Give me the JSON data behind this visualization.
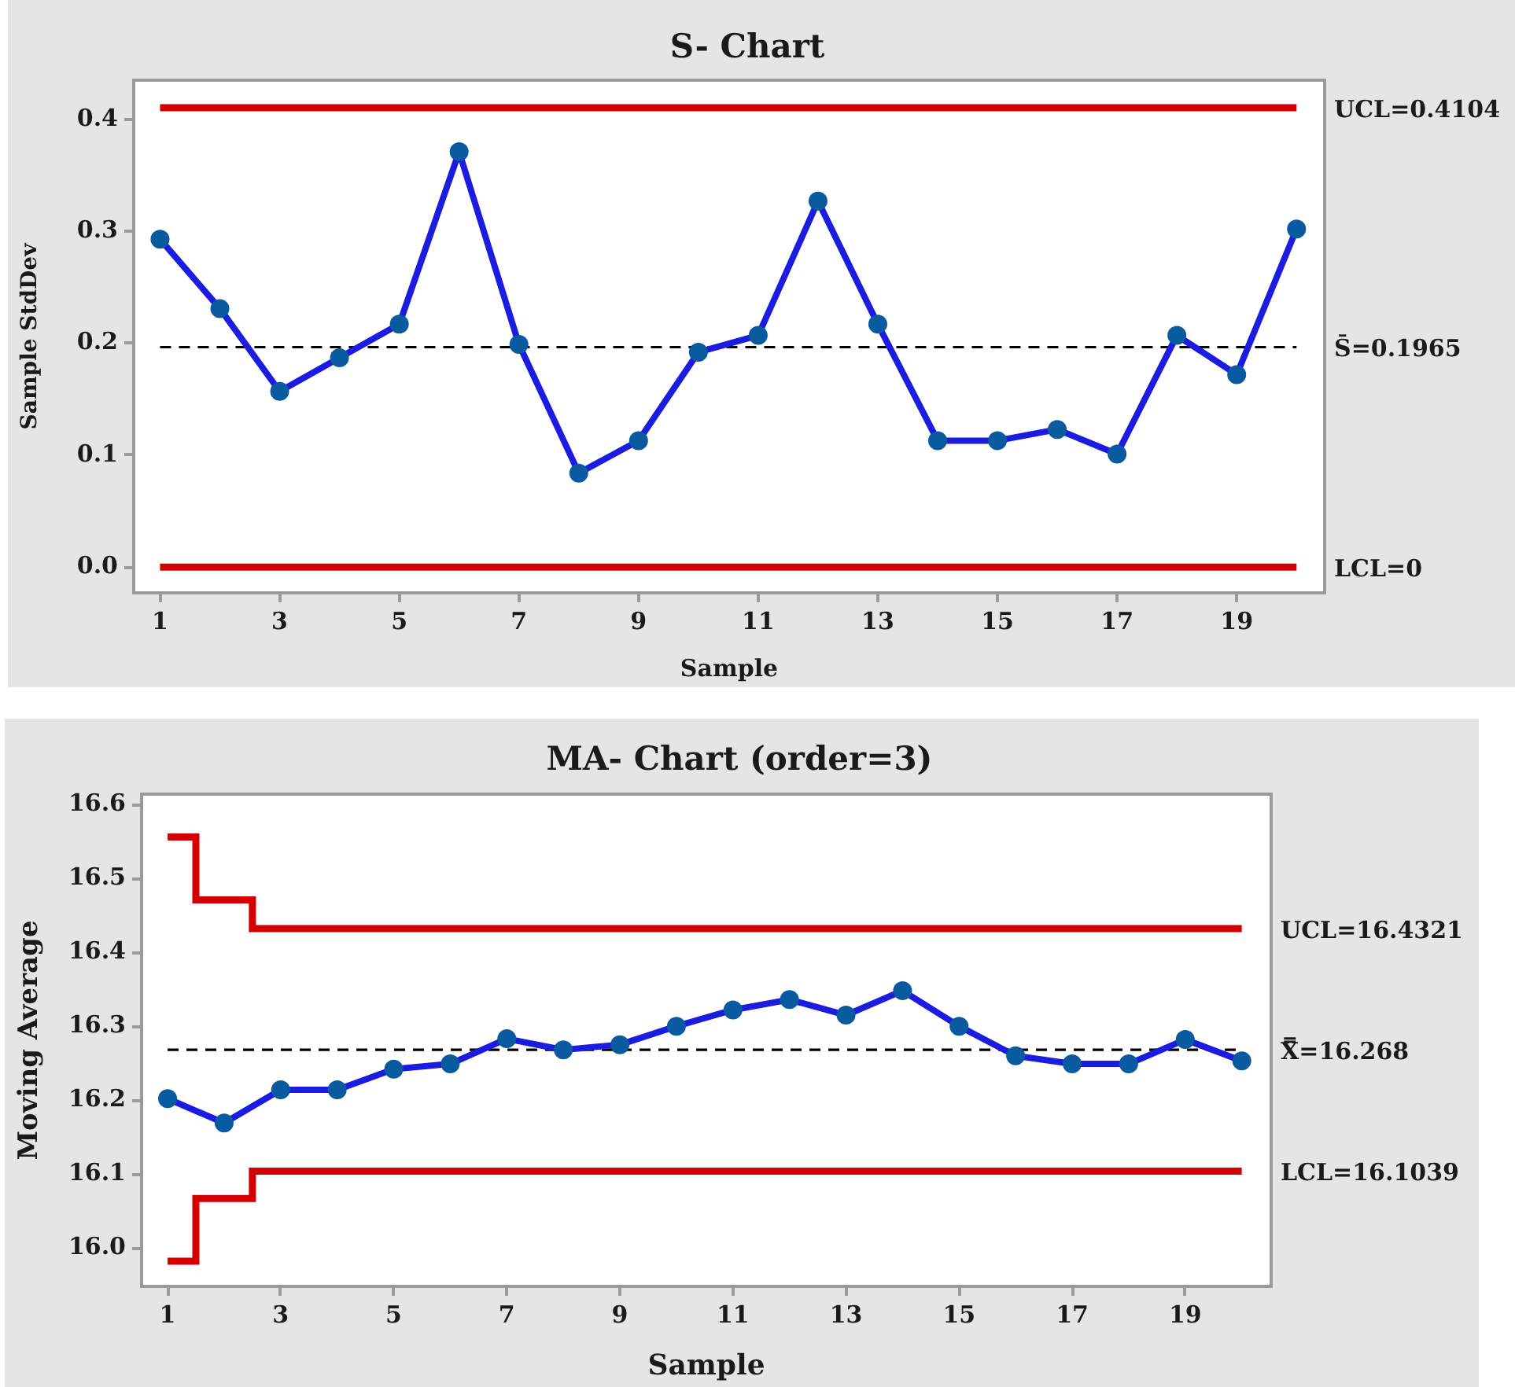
{
  "chart_data": [
    {
      "type": "line",
      "title": "S- Chart",
      "xlabel": "Sample",
      "ylabel": "Sample StdDev",
      "x": [
        1,
        2,
        3,
        4,
        5,
        6,
        7,
        8,
        9,
        10,
        11,
        12,
        13,
        14,
        15,
        16,
        17,
        18,
        19,
        20
      ],
      "marker": "circle",
      "series": [
        {
          "color": "#1c1ce0",
          "colors": [
            "#0a5aa0",
            "#0a5aa0",
            "#0a5aa0",
            "#0a5aa0",
            "#0a5aa0",
            "#0a5aa0",
            "#0a5aa0",
            "#0a5aa0",
            "#0a5aa0",
            "#0a5aa0",
            "#0a5aa0",
            "#0a5aa0",
            "#0a5aa0",
            "#0a5aa0",
            "#0a5aa0",
            "#0a5aa0",
            "#0a5aa0",
            "#0a5aa0",
            "#0a5aa0",
            "#0a5aa0"
          ],
          "values": [
            0.293,
            0.231,
            0.157,
            0.187,
            0.217,
            0.371,
            0.199,
            0.084,
            0.113,
            0.192,
            0.207,
            0.327,
            0.217,
            0.113,
            0.113,
            0.123,
            0.101,
            0.207,
            0.172,
            0.302
          ]
        }
      ],
      "xlim": [
        0.56,
        20.47
      ],
      "xticks": [
        1,
        3,
        5,
        7,
        9,
        11,
        13,
        15,
        17,
        19
      ],
      "ylim": [
        -0.023,
        0.435
      ],
      "yticks": [
        {
          "value": 0,
          "label": "0.0"
        },
        0.1,
        0.2,
        0.3,
        0.4
      ],
      "ref_lines": [
        {
          "axis": "y",
          "value": 0.4104,
          "label": "UCL=0.4104",
          "color": "#d40000"
        },
        {
          "axis": "y",
          "value": 0.1965,
          "label": "S̄=0.1965",
          "color": "#000000",
          "line_style": "dashed"
        },
        {
          "axis": "y",
          "value": 0,
          "label": "LCL=0",
          "color": "#d40000"
        }
      ]
    },
    {
      "type": "line",
      "title": "MA- Chart (order=3)",
      "xlabel": "Sample",
      "ylabel": "Moving Average",
      "x": [
        1,
        2,
        3,
        4,
        5,
        6,
        7,
        8,
        9,
        10,
        11,
        12,
        13,
        14,
        15,
        16,
        17,
        18,
        19,
        20
      ],
      "marker": "circle",
      "series": [
        {
          "color": "#1c1ce0",
          "colors": [
            "#0a5aa0",
            "#0a5aa0",
            "#0a5aa0",
            "#0a5aa0",
            "#0a5aa0",
            "#0a5aa0",
            "#0a5aa0",
            "#0a5aa0",
            "#0a5aa0",
            "#0a5aa0",
            "#0a5aa0",
            "#0a5aa0",
            "#0a5aa0",
            "#0a5aa0",
            "#0a5aa0",
            "#0a5aa0",
            "#0a5aa0",
            "#0a5aa0",
            "#0a5aa0",
            "#0a5aa0"
          ],
          "values": [
            16.202,
            16.169,
            16.214,
            16.214,
            16.242,
            16.249,
            16.283,
            16.268,
            16.275,
            16.3,
            16.322,
            16.336,
            16.315,
            16.348,
            16.3,
            16.26,
            16.249,
            16.249,
            16.282,
            16.253
          ]
        },
        {
          "type": "step",
          "name": "UCL=16.4321",
          "color": "#d40000",
          "marker": "none",
          "values": [
            16.556,
            16.471,
            16.4321,
            16.4321,
            16.4321,
            16.4321,
            16.4321,
            16.4321,
            16.4321,
            16.4321,
            16.4321,
            16.4321,
            16.4321,
            16.4321,
            16.4321,
            16.4321,
            16.4321,
            16.4321,
            16.4321,
            16.4321
          ]
        },
        {
          "type": "step",
          "name": "LCL=16.1039",
          "color": "#d40000",
          "marker": "none",
          "values": [
            15.982,
            16.067,
            16.1039,
            16.1039,
            16.1039,
            16.1039,
            16.1039,
            16.1039,
            16.1039,
            16.1039,
            16.1039,
            16.1039,
            16.1039,
            16.1039,
            16.1039,
            16.1039,
            16.1039,
            16.1039,
            16.1039,
            16.1039
          ]
        }
      ],
      "xlim": [
        0.54,
        20.52
      ],
      "xticks": [
        1,
        3,
        5,
        7,
        9,
        11,
        13,
        15,
        17,
        19
      ],
      "ylim": [
        15.948,
        16.614
      ],
      "yticks": [
        {
          "value": 16,
          "label": "16.0"
        },
        16.1,
        16.2,
        16.3,
        16.4,
        16.5,
        16.6
      ],
      "ref_lines": [
        {
          "axis": "y",
          "value": 16.268,
          "label": "X̿=16.268",
          "color": "#000000",
          "line_style": "dashed"
        }
      ]
    }
  ]
}
